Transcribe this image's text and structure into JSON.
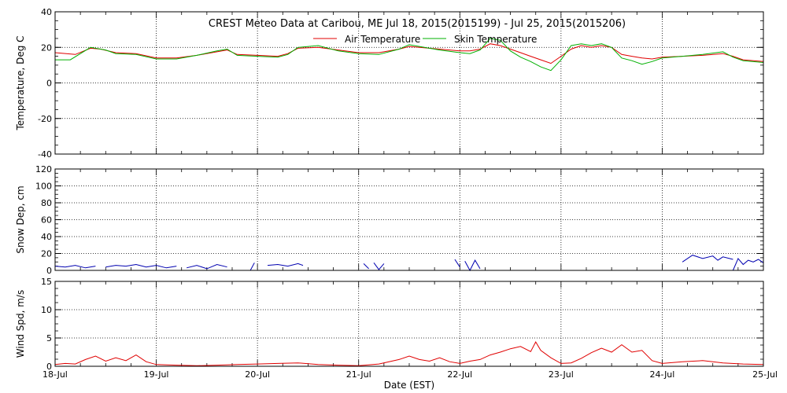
{
  "chart_data": {
    "title": "CREST Meteo Data at Caribou, ME   Jul 18, 2015(2015199) - Jul 25, 2015(2015206)",
    "xlabel": "Date (EST)",
    "x_tick_labels": [
      "18-Jul",
      "19-Jul",
      "20-Jul",
      "21-Jul",
      "22-Jul",
      "23-Jul",
      "24-Jul",
      "25-Jul"
    ],
    "x_range_days": [
      0,
      7
    ],
    "grid": true,
    "panels": [
      {
        "id": "temperature",
        "type": "line",
        "ylabel": "Temperature, Deg C",
        "ylim": [
          -40,
          40
        ],
        "yticks": [
          -40,
          -20,
          0,
          20,
          40
        ],
        "legend_position": "top-center",
        "series": [
          {
            "name": "Air Temperature",
            "color": "#e00000",
            "x_days": [
              0,
              0.2,
              0.35,
              0.45,
              0.6,
              0.8,
              1.0,
              1.2,
              1.4,
              1.6,
              1.7,
              1.8,
              2.0,
              2.2,
              2.3,
              2.4,
              2.6,
              2.8,
              3.0,
              3.2,
              3.4,
              3.5,
              3.6,
              3.8,
              4.0,
              4.1,
              4.2,
              4.3,
              4.4,
              4.5,
              4.6,
              4.7,
              4.8,
              4.9,
              5.0,
              5.1,
              5.2,
              5.3,
              5.4,
              5.5,
              5.6,
              5.7,
              5.8,
              5.9,
              6.0,
              6.2,
              6.4,
              6.6,
              6.7,
              6.8,
              7.0
            ],
            "y_degC": [
              17,
              16,
              19.5,
              19,
              17,
              16.5,
              14,
              14,
              15.5,
              17.5,
              18.5,
              16,
              15.5,
              15,
              16.5,
              19.5,
              20,
              18.5,
              17,
              17,
              19,
              20.5,
              20,
              19,
              18,
              18,
              19,
              22,
              21,
              19,
              17,
              15,
              13,
              11,
              15,
              19,
              21,
              20,
              21,
              20,
              16,
              15,
              14,
              13.5,
              14.5,
              15,
              15.5,
              16.5,
              15,
              13,
              12
            ]
          },
          {
            "name": "Skin Temperature",
            "color": "#00b000",
            "x_days": [
              0,
              0.15,
              0.35,
              0.5,
              0.6,
              0.8,
              1.0,
              1.2,
              1.4,
              1.6,
              1.7,
              1.8,
              2.0,
              2.2,
              2.3,
              2.4,
              2.6,
              2.8,
              3.0,
              3.2,
              3.4,
              3.5,
              3.6,
              3.8,
              4.0,
              4.1,
              4.2,
              4.3,
              4.4,
              4.5,
              4.6,
              4.7,
              4.8,
              4.9,
              5.0,
              5.1,
              5.2,
              5.3,
              5.4,
              5.5,
              5.6,
              5.7,
              5.8,
              5.9,
              6.0,
              6.2,
              6.4,
              6.6,
              6.7,
              6.8,
              7.0
            ],
            "y_degC": [
              13,
              13,
              20,
              18.5,
              16.5,
              16,
              13.5,
              13.5,
              15.5,
              18,
              19,
              15.5,
              15,
              14.5,
              16,
              20,
              21,
              18,
              16.5,
              16,
              19,
              21.5,
              20.5,
              18.5,
              17,
              16.5,
              18.5,
              25,
              24,
              18,
              14.5,
              12,
              9,
              7,
              13,
              21,
              22,
              21,
              22,
              20,
              14,
              12.5,
              10.5,
              12,
              14,
              15,
              16,
              17.5,
              14.5,
              12.5,
              11.5
            ]
          }
        ]
      },
      {
        "id": "snow_depth",
        "type": "line",
        "ylabel": "Snow Dep, cm",
        "ylim": [
          0,
          120
        ],
        "yticks": [
          0,
          20,
          40,
          60,
          80,
          100,
          120
        ],
        "series": [
          {
            "color": "#0000b0",
            "segments": [
              {
                "x_days": [
                  0.0,
                  0.1,
                  0.2,
                  0.3,
                  0.4
                ],
                "y_cm": [
                  5,
                  4,
                  6,
                  3,
                  5
                ]
              },
              {
                "x_days": [
                  0.5,
                  0.6,
                  0.7,
                  0.8,
                  0.9,
                  1.0,
                  1.1,
                  1.2
                ],
                "y_cm": [
                  4,
                  6,
                  5,
                  7,
                  4,
                  6,
                  3,
                  5
                ]
              },
              {
                "x_days": [
                  1.3,
                  1.4,
                  1.5,
                  1.6,
                  1.7
                ],
                "y_cm": [
                  3,
                  6,
                  2,
                  7,
                  4
                ]
              },
              {
                "x_days": [
                  1.93,
                  1.97
                ],
                "y_cm": [
                  0,
                  9
                ]
              },
              {
                "x_days": [
                  2.1,
                  2.2,
                  2.3,
                  2.4,
                  2.45
                ],
                "y_cm": [
                  6,
                  7,
                  5,
                  8,
                  6
                ]
              },
              {
                "x_days": [
                  3.05,
                  3.1
                ],
                "y_cm": [
                  8,
                  2
                ]
              },
              {
                "x_days": [
                  3.15,
                  3.2,
                  3.25
                ],
                "y_cm": [
                  9,
                  1,
                  8
                ]
              },
              {
                "x_days": [
                  3.95,
                  4.0
                ],
                "y_cm": [
                  13,
                  4
                ]
              },
              {
                "x_days": [
                  4.05,
                  4.1,
                  4.15,
                  4.2
                ],
                "y_cm": [
                  11,
                  0,
                  12,
                  2
                ]
              },
              {
                "x_days": [
                  6.2,
                  6.3,
                  6.4,
                  6.5,
                  6.55,
                  6.6,
                  6.7
                ],
                "y_cm": [
                  10,
                  18,
                  14,
                  17,
                  12,
                  16,
                  13
                ]
              },
              {
                "x_days": [
                  6.7,
                  6.75,
                  6.8,
                  6.85,
                  6.9,
                  6.95,
                  7.0
                ],
                "y_cm": [
                  0,
                  14,
                  7,
                  12,
                  10,
                  13,
                  9
                ]
              }
            ]
          }
        ]
      },
      {
        "id": "wind_speed",
        "type": "line",
        "ylabel": "Wind Spd, m/s",
        "ylim": [
          0,
          15
        ],
        "yticks": [
          0,
          5,
          10,
          15
        ],
        "series": [
          {
            "color": "#e00000",
            "x_days": [
              0,
              0.1,
              0.2,
              0.3,
              0.4,
              0.5,
              0.6,
              0.7,
              0.8,
              0.9,
              1.0,
              1.2,
              1.4,
              1.6,
              1.8,
              2.0,
              2.2,
              2.4,
              2.6,
              2.8,
              3.0,
              3.2,
              3.3,
              3.4,
              3.5,
              3.6,
              3.7,
              3.8,
              3.9,
              4.0,
              4.1,
              4.2,
              4.3,
              4.4,
              4.5,
              4.6,
              4.7,
              4.75,
              4.8,
              4.9,
              5.0,
              5.1,
              5.2,
              5.3,
              5.4,
              5.5,
              5.6,
              5.7,
              5.8,
              5.9,
              6.0,
              6.2,
              6.4,
              6.6,
              6.8,
              7.0
            ],
            "y_ms": [
              0.3,
              0.5,
              0.4,
              1.2,
              1.8,
              0.9,
              1.5,
              1.0,
              2.0,
              0.8,
              0.3,
              0.2,
              0.1,
              0.2,
              0.3,
              0.4,
              0.5,
              0.6,
              0.3,
              0.2,
              0.1,
              0.4,
              0.8,
              1.2,
              1.8,
              1.2,
              0.9,
              1.5,
              0.8,
              0.5,
              0.9,
              1.2,
              2.0,
              2.5,
              3.1,
              3.5,
              2.6,
              4.3,
              2.8,
              1.5,
              0.5,
              0.6,
              1.4,
              2.4,
              3.2,
              2.5,
              3.8,
              2.5,
              2.8,
              1.0,
              0.5,
              0.8,
              1.0,
              0.6,
              0.4,
              0.3
            ]
          }
        ]
      }
    ]
  }
}
